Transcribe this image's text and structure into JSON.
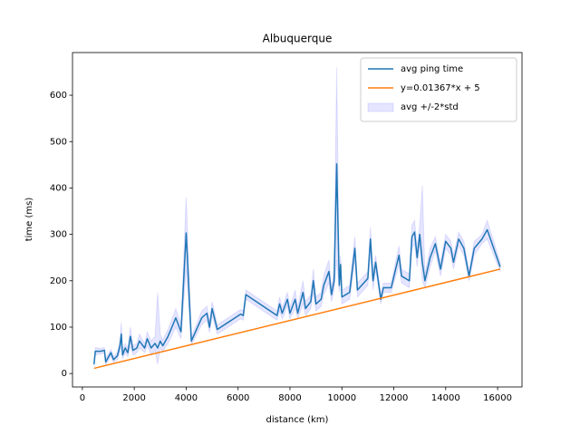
{
  "chart_data": {
    "type": "line",
    "title": "Albuquerque",
    "xlabel": "distance (km)",
    "ylabel": "time (ms)",
    "xlim": [
      -380,
      16940
    ],
    "ylim": [
      -29,
      692
    ],
    "xticks": [
      0,
      2000,
      4000,
      6000,
      8000,
      10000,
      12000,
      14000,
      16000
    ],
    "yticks": [
      0,
      100,
      200,
      300,
      400,
      500,
      600
    ],
    "legend": "upper right",
    "series": [
      {
        "name": "avg ping time",
        "color": "#1f77b4",
        "x": [
          450,
          500,
          700,
          850,
          900,
          1000,
          1100,
          1200,
          1350,
          1450,
          1500,
          1550,
          1650,
          1750,
          1850,
          1950,
          2100,
          2200,
          2400,
          2500,
          2650,
          2800,
          2900,
          3000,
          3100,
          3300,
          3600,
          3800,
          4000,
          4200,
          4600,
          4800,
          4900,
          5000,
          5200,
          6100,
          6200,
          6300,
          7500,
          7600,
          7700,
          7900,
          8000,
          8200,
          8300,
          8500,
          8600,
          8800,
          8900,
          9000,
          9200,
          9300,
          9500,
          9600,
          9700,
          9800,
          9900,
          9950,
          10000,
          10300,
          10500,
          10600,
          11000,
          11100,
          11200,
          11300,
          11500,
          11600,
          11900,
          12200,
          12300,
          12600,
          12700,
          12800,
          12900,
          13000,
          13100,
          13200,
          13400,
          13600,
          13800,
          14000,
          14200,
          14300,
          14500,
          14700,
          14900,
          15100,
          15400,
          15600,
          16100
        ],
        "values": [
          20,
          48,
          48,
          50,
          25,
          35,
          45,
          30,
          38,
          60,
          85,
          40,
          55,
          45,
          80,
          50,
          55,
          70,
          55,
          75,
          55,
          65,
          55,
          70,
          60,
          80,
          120,
          90,
          303,
          70,
          120,
          130,
          100,
          140,
          95,
          128,
          125,
          170,
          125,
          150,
          130,
          160,
          130,
          160,
          130,
          175,
          140,
          155,
          200,
          150,
          160,
          190,
          220,
          170,
          200,
          452,
          190,
          235,
          165,
          175,
          270,
          180,
          205,
          290,
          200,
          240,
          160,
          185,
          185,
          255,
          210,
          200,
          295,
          305,
          250,
          300,
          240,
          200,
          250,
          280,
          225,
          285,
          270,
          240,
          290,
          270,
          210,
          270,
          290,
          310,
          230
        ]
      },
      {
        "name": "y=0.01367*x + 5",
        "color": "#ff7f0e",
        "x": [
          450,
          16100
        ],
        "values": [
          11.15,
          225.1
        ]
      },
      {
        "name": "avg +/-2*std",
        "type": "band",
        "color": "#0000ff",
        "lower": [
          15,
          40,
          42,
          44,
          18,
          28,
          38,
          24,
          30,
          48,
          60,
          32,
          45,
          36,
          60,
          40,
          45,
          55,
          45,
          60,
          40,
          50,
          20,
          55,
          48,
          65,
          100,
          75,
          225,
          62,
          105,
          115,
          88,
          125,
          85,
          118,
          115,
          160,
          115,
          135,
          118,
          145,
          118,
          140,
          118,
          150,
          125,
          140,
          175,
          135,
          145,
          170,
          195,
          155,
          180,
          245,
          175,
          215,
          150,
          160,
          245,
          165,
          190,
          265,
          180,
          225,
          150,
          175,
          175,
          235,
          195,
          185,
          270,
          280,
          230,
          280,
          200,
          185,
          230,
          265,
          210,
          270,
          255,
          225,
          275,
          255,
          200,
          255,
          280,
          290,
          220
        ],
        "upper": [
          25,
          56,
          54,
          56,
          32,
          42,
          52,
          36,
          46,
          72,
          110,
          48,
          65,
          54,
          100,
          60,
          65,
          85,
          65,
          90,
          70,
          80,
          175,
          85,
          72,
          95,
          140,
          105,
          380,
          78,
          135,
          145,
          112,
          155,
          105,
          138,
          135,
          180,
          135,
          165,
          142,
          175,
          142,
          180,
          142,
          200,
          155,
          170,
          225,
          165,
          175,
          210,
          245,
          185,
          220,
          660,
          205,
          255,
          180,
          190,
          295,
          195,
          220,
          315,
          220,
          255,
          170,
          195,
          195,
          275,
          225,
          215,
          320,
          330,
          270,
          320,
          405,
          215,
          270,
          295,
          240,
          300,
          285,
          255,
          305,
          285,
          220,
          285,
          300,
          330,
          240
        ]
      }
    ]
  }
}
